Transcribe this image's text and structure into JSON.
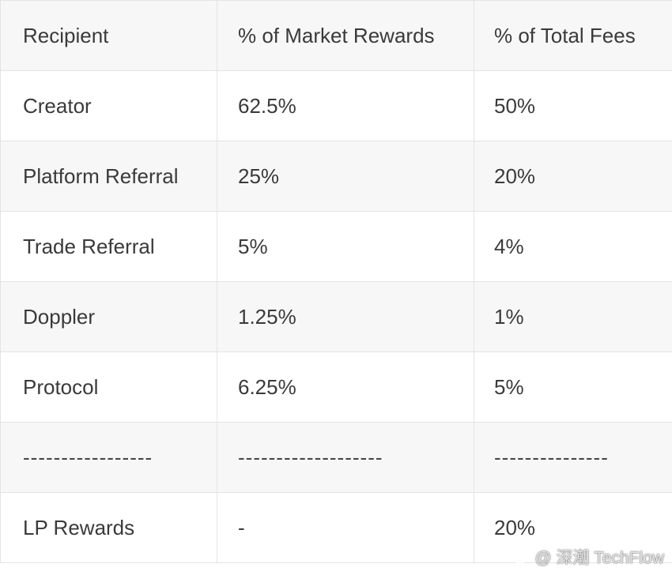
{
  "table": {
    "headers": [
      "Recipient",
      "% of Market Rewards",
      "% of Total Fees"
    ],
    "rows": [
      [
        "Creator",
        "62.5%",
        "50%"
      ],
      [
        "Platform Referral",
        "25%",
        "20%"
      ],
      [
        "Trade Referral",
        "5%",
        "4%"
      ],
      [
        "Doppler",
        "1.25%",
        "1%"
      ],
      [
        "Protocol",
        "6.25%",
        "5%"
      ],
      [
        "-----------------",
        "-------------------",
        "---------------"
      ],
      [
        "LP Rewards",
        "-",
        "20%"
      ]
    ]
  },
  "watermark": {
    "text": "@ 深潮 TechFlow",
    "icon": "weibo-logo-icon"
  }
}
